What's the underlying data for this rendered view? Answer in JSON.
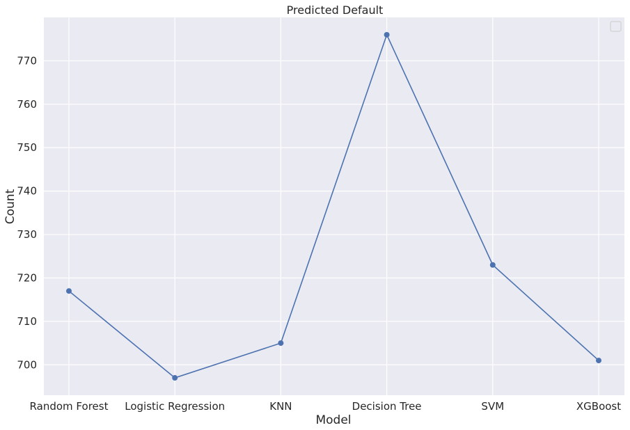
{
  "chart_data": {
    "type": "line",
    "title": "Predicted Default",
    "xlabel": "Model",
    "ylabel": "Count",
    "categories": [
      "Random Forest",
      "Logistic Regression",
      "KNN",
      "Decision Tree",
      "SVM",
      "XGBoost"
    ],
    "series": [
      {
        "values": [
          717,
          697,
          705,
          776,
          723,
          701
        ],
        "color": "#4c72b0",
        "marker": "circle"
      }
    ],
    "ylim": [
      693,
      780
    ],
    "yticks": [
      700,
      710,
      720,
      730,
      740,
      750,
      760,
      770
    ],
    "grid": true,
    "legend": "top-right (empty)",
    "colors": {
      "plot_background": "#eaeaf2",
      "grid": "#ffffff",
      "text": "#262626",
      "line": "#4c72b0"
    }
  }
}
